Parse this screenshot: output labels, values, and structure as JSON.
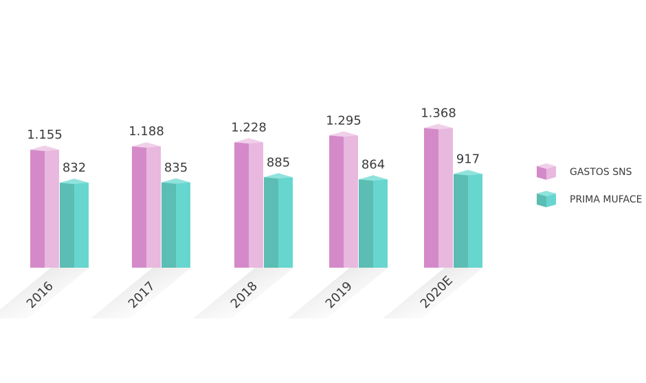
{
  "chart_data": {
    "type": "bar",
    "categories": [
      "2016",
      "2017",
      "2018",
      "2019",
      "2020E"
    ],
    "series": [
      {
        "name": "GASTOS SNS",
        "values": [
          1155,
          1188,
          1228,
          1295,
          1368
        ],
        "labels": [
          "1.155",
          "1.188",
          "1.228",
          "1.295",
          "1.368"
        ],
        "color_dark": "#d48ac8",
        "color_light": "#e8b8de",
        "color_top": "#f0cfe9"
      },
      {
        "name": "PRIMA MUFACE",
        "values": [
          832,
          835,
          885,
          864,
          917
        ],
        "labels": [
          "832",
          "835",
          "885",
          "864",
          "917"
        ],
        "color_dark": "#5bbdb3",
        "color_light": "#66d6cf",
        "color_top": "#8fe3dc"
      }
    ],
    "title": "",
    "xlabel": "",
    "ylabel": "",
    "legend_position": "right",
    "grid": false
  }
}
